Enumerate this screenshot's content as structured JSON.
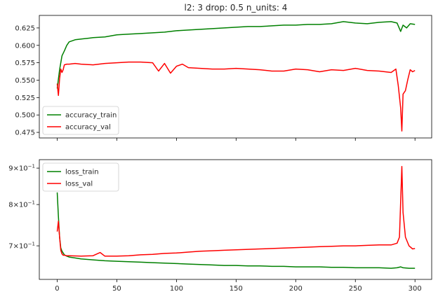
{
  "title": "l2: 3 drop: 0.5 n_units: 4",
  "chart_data": [
    {
      "type": "line",
      "title": "l2: 3 drop: 0.5 n_units: 4",
      "xlim": [
        -15,
        314
      ],
      "ylim": [
        0.467,
        0.643
      ],
      "yticks": [
        0.475,
        0.5,
        0.525,
        0.55,
        0.575,
        0.6,
        0.625
      ],
      "ytick_labels": [
        "0.475",
        "0.500",
        "0.525",
        "0.550",
        "0.575",
        "0.600",
        "0.625"
      ],
      "xticks": [
        0,
        50,
        100,
        150,
        200,
        250,
        300
      ],
      "xtick_labels_visible": false,
      "legend": "lower-left",
      "grid": false,
      "series": [
        {
          "name": "accuracy_train",
          "color": "#008000",
          "x": [
            0,
            2,
            4,
            6,
            8,
            10,
            15,
            20,
            30,
            40,
            50,
            60,
            70,
            80,
            90,
            100,
            110,
            120,
            130,
            140,
            150,
            160,
            170,
            180,
            190,
            200,
            210,
            220,
            230,
            240,
            250,
            260,
            270,
            280,
            285,
            288,
            290,
            293,
            296,
            300
          ],
          "y": [
            0.538,
            0.565,
            0.585,
            0.592,
            0.6,
            0.605,
            0.608,
            0.609,
            0.611,
            0.612,
            0.615,
            0.616,
            0.617,
            0.618,
            0.619,
            0.621,
            0.622,
            0.623,
            0.624,
            0.625,
            0.626,
            0.627,
            0.627,
            0.628,
            0.629,
            0.629,
            0.63,
            0.63,
            0.631,
            0.634,
            0.632,
            0.631,
            0.633,
            0.634,
            0.632,
            0.62,
            0.629,
            0.625,
            0.631,
            0.63
          ]
        },
        {
          "name": "accuracy_val",
          "color": "#ff0000",
          "x": [
            0,
            1,
            2,
            3,
            4,
            5,
            6,
            8,
            10,
            15,
            20,
            30,
            40,
            50,
            60,
            70,
            80,
            85,
            90,
            95,
            100,
            105,
            110,
            120,
            130,
            140,
            150,
            160,
            170,
            180,
            190,
            200,
            210,
            220,
            230,
            240,
            250,
            260,
            270,
            280,
            284,
            286,
            288,
            289,
            290,
            292,
            294,
            296,
            298,
            300
          ],
          "y": [
            0.545,
            0.528,
            0.552,
            0.566,
            0.561,
            0.565,
            0.572,
            0.573,
            0.573,
            0.574,
            0.573,
            0.572,
            0.574,
            0.575,
            0.576,
            0.576,
            0.575,
            0.563,
            0.574,
            0.56,
            0.57,
            0.573,
            0.568,
            0.567,
            0.566,
            0.566,
            0.567,
            0.566,
            0.565,
            0.563,
            0.563,
            0.566,
            0.565,
            0.562,
            0.565,
            0.564,
            0.567,
            0.564,
            0.563,
            0.561,
            0.566,
            0.542,
            0.51,
            0.477,
            0.53,
            0.535,
            0.551,
            0.565,
            0.562,
            0.564
          ]
        }
      ]
    },
    {
      "type": "line",
      "yscale": "log",
      "xlim": [
        -15,
        314
      ],
      "ylim": [
        0.628,
        0.925
      ],
      "yticks": [
        0.7,
        0.8,
        0.9
      ],
      "ytick_labels": [
        {
          "mantissa": "7",
          "base": "10",
          "exp": "−1"
        },
        {
          "mantissa": "8",
          "base": "10",
          "exp": "−1"
        },
        {
          "mantissa": "9",
          "base": "10",
          "exp": "−1"
        }
      ],
      "xticks": [
        0,
        50,
        100,
        150,
        200,
        250,
        300
      ],
      "xtick_labels": [
        "0",
        "50",
        "100",
        "150",
        "200",
        "250",
        "300"
      ],
      "legend": "top-left",
      "grid": false,
      "series": [
        {
          "name": "loss_train",
          "color": "#008000",
          "x": [
            0,
            1,
            2,
            3,
            4,
            5,
            6,
            8,
            10,
            15,
            20,
            30,
            40,
            50,
            60,
            70,
            80,
            90,
            100,
            110,
            120,
            130,
            140,
            150,
            160,
            170,
            180,
            190,
            200,
            210,
            220,
            230,
            240,
            250,
            260,
            270,
            280,
            285,
            288,
            290,
            295,
            300
          ],
          "y": [
            0.832,
            0.77,
            0.72,
            0.695,
            0.688,
            0.684,
            0.68,
            0.677,
            0.675,
            0.673,
            0.671,
            0.669,
            0.667,
            0.666,
            0.665,
            0.664,
            0.663,
            0.662,
            0.661,
            0.66,
            0.659,
            0.658,
            0.657,
            0.657,
            0.656,
            0.656,
            0.655,
            0.655,
            0.654,
            0.654,
            0.654,
            0.653,
            0.653,
            0.652,
            0.652,
            0.652,
            0.651,
            0.652,
            0.654,
            0.652,
            0.651,
            0.651
          ]
        },
        {
          "name": "loss_val",
          "color": "#ff0000",
          "x": [
            0,
            1,
            2,
            3,
            4,
            5,
            6,
            8,
            10,
            20,
            30,
            36,
            40,
            50,
            60,
            70,
            80,
            90,
            100,
            110,
            120,
            130,
            140,
            150,
            160,
            170,
            180,
            190,
            200,
            210,
            220,
            230,
            240,
            250,
            260,
            270,
            280,
            285,
            287,
            289,
            290,
            292,
            295,
            298,
            300
          ],
          "y": [
            0.733,
            0.758,
            0.72,
            0.69,
            0.682,
            0.679,
            0.679,
            0.678,
            0.678,
            0.677,
            0.678,
            0.685,
            0.677,
            0.677,
            0.678,
            0.68,
            0.681,
            0.683,
            0.684,
            0.686,
            0.688,
            0.689,
            0.69,
            0.691,
            0.692,
            0.693,
            0.694,
            0.695,
            0.696,
            0.697,
            0.698,
            0.699,
            0.7,
            0.7,
            0.701,
            0.702,
            0.702,
            0.706,
            0.72,
            0.905,
            0.78,
            0.72,
            0.7,
            0.693,
            0.694
          ]
        }
      ]
    }
  ]
}
